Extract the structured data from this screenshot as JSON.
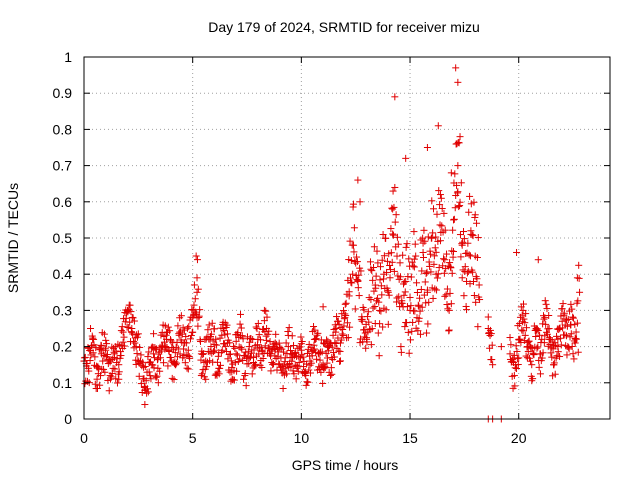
{
  "chart_data": {
    "type": "scatter",
    "title": "Day 179 of 2024, SRMTID for receiver mizu",
    "xlabel": "GPS time / hours",
    "ylabel": "SRMTID / TECUs",
    "xlim": [
      0,
      24.2
    ],
    "ylim": [
      0,
      1
    ],
    "x_ticks": [
      0,
      5,
      10,
      15,
      20
    ],
    "x_tick_labels": [
      "0",
      "5",
      "10",
      "15",
      "20"
    ],
    "y_ticks": [
      0,
      0.1,
      0.2,
      0.3,
      0.4,
      0.5,
      0.6,
      0.7,
      0.8,
      0.9,
      1
    ],
    "y_tick_labels": [
      "0",
      "0.1",
      "0.2",
      "0.3",
      "0.4",
      "0.5",
      "0.6",
      "0.7",
      "0.8",
      "0.9",
      "1"
    ],
    "grid": true,
    "marker": "+",
    "color": "#e00000",
    "series": [
      {
        "name": "SRMTID",
        "x": [
          0.0,
          0.2,
          0.4,
          0.6,
          0.8,
          1.0,
          1.2,
          1.4,
          1.6,
          1.8,
          2.0,
          2.2,
          2.4,
          2.6,
          2.8,
          3.0,
          3.2,
          3.4,
          3.6,
          3.8,
          4.0,
          4.2,
          4.4,
          4.6,
          4.8,
          5.0,
          5.2,
          5.4,
          5.6,
          5.8,
          6.0,
          6.2,
          6.4,
          6.6,
          6.8,
          7.0,
          7.2,
          7.4,
          7.6,
          7.8,
          8.0,
          8.2,
          8.4,
          8.6,
          8.8,
          9.0,
          9.2,
          9.4,
          9.6,
          9.8,
          10.0,
          10.2,
          10.4,
          10.6,
          10.8,
          11.0,
          11.2,
          11.4,
          11.6,
          11.8,
          12.0,
          12.2,
          12.4,
          12.6,
          12.8,
          13.0,
          13.2,
          13.4,
          13.6,
          13.8,
          14.0,
          14.2,
          14.4,
          14.6,
          14.8,
          15.0,
          15.2,
          15.4,
          15.6,
          15.8,
          16.0,
          16.2,
          16.4,
          16.6,
          16.8,
          17.0,
          17.2,
          17.4,
          17.6,
          17.8,
          18.0,
          18.2,
          18.6,
          18.8,
          19.2,
          19.6,
          19.8,
          20.0,
          20.2,
          20.4,
          20.6,
          20.8,
          21.0,
          21.2,
          21.4,
          21.6,
          21.8,
          22.0,
          22.2,
          22.4,
          22.6,
          22.8
        ],
        "y": [
          0.16,
          0.14,
          0.22,
          0.11,
          0.18,
          0.19,
          0.12,
          0.17,
          0.15,
          0.24,
          0.3,
          0.25,
          0.2,
          0.16,
          0.09,
          0.13,
          0.18,
          0.14,
          0.2,
          0.22,
          0.17,
          0.15,
          0.24,
          0.21,
          0.19,
          0.28,
          0.35,
          0.18,
          0.16,
          0.22,
          0.19,
          0.14,
          0.25,
          0.21,
          0.13,
          0.18,
          0.23,
          0.12,
          0.2,
          0.17,
          0.22,
          0.19,
          0.25,
          0.18,
          0.21,
          0.15,
          0.13,
          0.2,
          0.17,
          0.14,
          0.19,
          0.12,
          0.16,
          0.22,
          0.18,
          0.15,
          0.2,
          0.17,
          0.25,
          0.21,
          0.28,
          0.34,
          0.48,
          0.38,
          0.27,
          0.22,
          0.33,
          0.37,
          0.3,
          0.4,
          0.35,
          0.58,
          0.45,
          0.32,
          0.38,
          0.3,
          0.42,
          0.27,
          0.46,
          0.35,
          0.5,
          0.4,
          0.62,
          0.44,
          0.3,
          0.55,
          0.7,
          0.48,
          0.38,
          0.52,
          0.45,
          0.33,
          0.25,
          0.15,
          0.2,
          0.18,
          0.12,
          0.22,
          0.3,
          0.2,
          0.15,
          0.25,
          0.18,
          0.28,
          0.22,
          0.15,
          0.2,
          0.27,
          0.23,
          0.26,
          0.21,
          0.35
        ],
        "extra_points": [
          {
            "x": 14.3,
            "y": 0.89
          },
          {
            "x": 17.1,
            "y": 0.97
          },
          {
            "x": 17.2,
            "y": 0.93
          },
          {
            "x": 16.3,
            "y": 0.81
          },
          {
            "x": 12.6,
            "y": 0.66
          },
          {
            "x": 14.8,
            "y": 0.72
          },
          {
            "x": 15.8,
            "y": 0.75
          },
          {
            "x": 16.9,
            "y": 0.68
          },
          {
            "x": 17.3,
            "y": 0.78
          },
          {
            "x": 19.9,
            "y": 0.46
          },
          {
            "x": 20.9,
            "y": 0.44
          },
          {
            "x": 2.8,
            "y": 0.04
          },
          {
            "x": 18.6,
            "y": 0.0
          },
          {
            "x": 18.8,
            "y": 0.0
          },
          {
            "x": 19.2,
            "y": 0.0
          },
          {
            "x": 22.7,
            "y": 0.39
          },
          {
            "x": 5.2,
            "y": 0.39
          },
          {
            "x": 0.3,
            "y": 0.25
          },
          {
            "x": 8.3,
            "y": 0.3
          },
          {
            "x": 11.0,
            "y": 0.31
          },
          {
            "x": 12.7,
            "y": 0.6
          }
        ]
      }
    ]
  }
}
